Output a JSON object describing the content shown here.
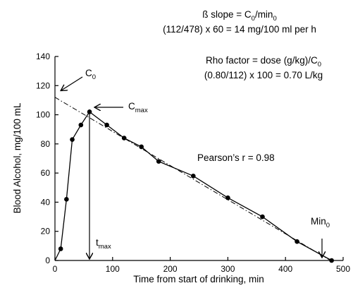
{
  "chart_data": {
    "type": "scatter",
    "title": "",
    "xlabel": "Time from start of drinking, min",
    "ylabel": "Blood Alcohol, mg/100 mL",
    "xlim": [
      0,
      500
    ],
    "ylim": [
      0,
      140
    ],
    "x_ticks": [
      0,
      100,
      200,
      300,
      400,
      500
    ],
    "y_ticks": [
      0,
      20,
      40,
      60,
      80,
      100,
      120,
      140
    ],
    "grid": false,
    "legend": "none",
    "series": [
      {
        "style": "solid line with filled circle markers",
        "x": [
          10,
          20,
          30,
          45,
          60,
          90,
          120,
          150,
          180,
          240,
          300,
          360,
          420,
          480
        ],
        "y": [
          8,
          42,
          83,
          93,
          102,
          93,
          84,
          78,
          68,
          58,
          43,
          30,
          13,
          0
        ]
      },
      {
        "style": "dash-dot regression line",
        "x": [
          0,
          478
        ],
        "y": [
          112,
          0
        ]
      }
    ],
    "annotations": {
      "c0": {
        "main": "C",
        "sub": "0"
      },
      "cmax": {
        "main": "C",
        "sub": "max"
      },
      "tmax": {
        "main": "t",
        "sub": "max"
      },
      "min0": {
        "main": "Min",
        "sub": "0"
      },
      "beta_line1": {
        "pre": "ß slope = C",
        "sub1": "0",
        "mid": "/min",
        "sub2": "0"
      },
      "beta_line2": "(112/478) x 60 = 14 mg/100 ml per h",
      "rho_line1": {
        "pre": "Rho factor = dose (g/kg)/C",
        "sub": "0"
      },
      "rho_line2": "(0.80/112) x 100 = 0.70 L/kg",
      "pearson": "Pearson’s r = 0.98"
    },
    "colors": {
      "ink": "#000000",
      "background": "#ffffff"
    }
  }
}
